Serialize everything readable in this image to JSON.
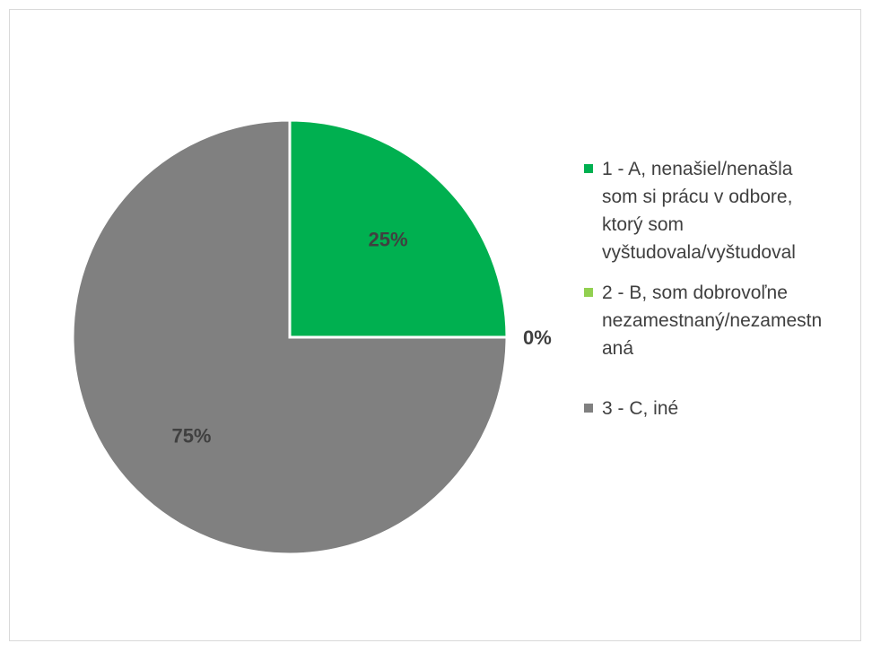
{
  "chart_data": {
    "type": "pie",
    "title": "",
    "categories": [
      "1 - A, nenašiel/nenašla som si prácu v odbore, ktorý som vyštudovala/vyštudoval",
      "2 - B, som dobrovoľne nezamestnaný/nezamestnaná",
      "3 - C, iné"
    ],
    "values": [
      25,
      0,
      75
    ],
    "data_labels": [
      "25%",
      "0%",
      "75%"
    ],
    "colors": [
      "#00b050",
      "#92d050",
      "#808080"
    ],
    "legend_position": "right"
  },
  "legend": {
    "items": [
      {
        "lines": [
          "1 - A, nenašiel/nenašla",
          "som si prácu v odbore,",
          "ktorý som",
          "vyštudovala/vyštudoval"
        ]
      },
      {
        "lines": [
          "2 - B, som dobrovoľne",
          "nezamestnaný/nezamestn",
          "aná"
        ]
      },
      {
        "lines": [
          "3 - C, iné"
        ]
      }
    ]
  }
}
